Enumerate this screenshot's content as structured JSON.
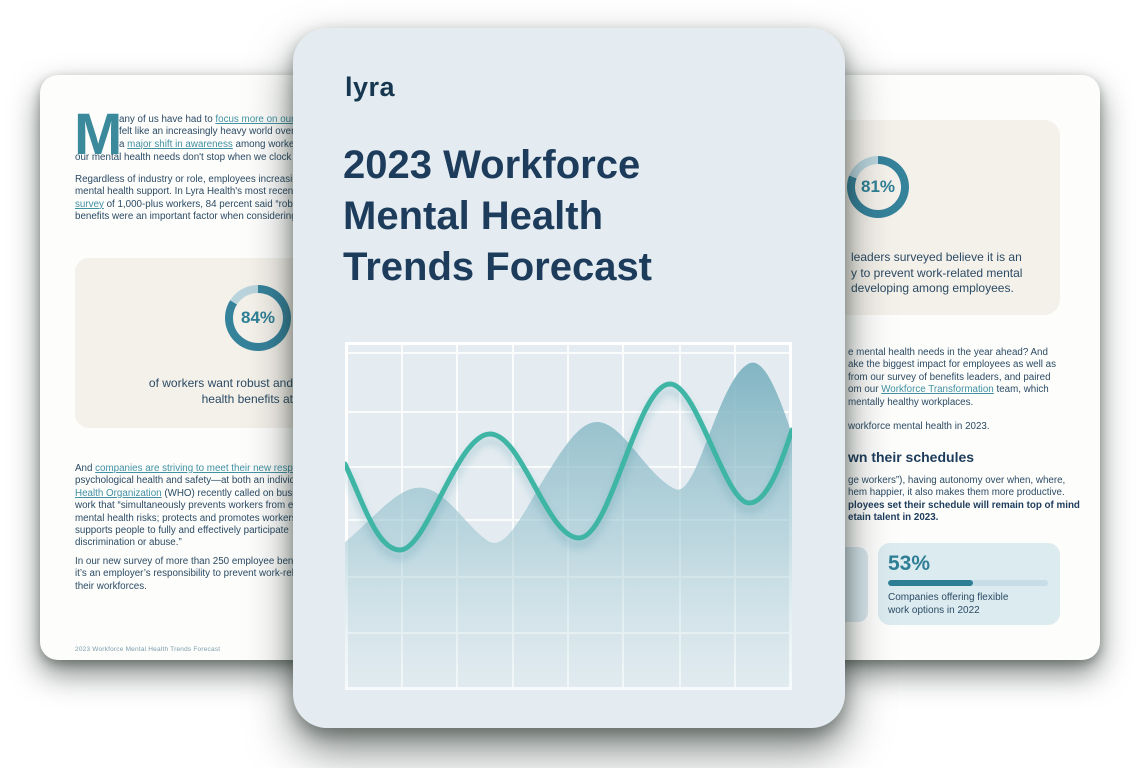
{
  "colors": {
    "teal": "#35829b",
    "donut_track": "#b9d4dd",
    "navy": "#1d3c5c",
    "link": "#4191a3",
    "wave": "#3fb5a6",
    "area_top": "#79b0bf",
    "cover_bg": "#e4ecf1",
    "beige_card": "#f4f0ea",
    "blue_card": "#dcebf0"
  },
  "center_card": {
    "logo": "lyra",
    "title": [
      "2023 Workforce",
      "Mental Health",
      "Trends Forecast"
    ]
  },
  "left_page": {
    "dropcap": "M",
    "p1": [
      [
        "any of us have had to ",
        {
          "t": "focus more on our",
          "link": true
        }
      ],
      [
        "felt like an increasingly heavy world over"
      ],
      [
        "a ",
        {
          "t": "major shift in awareness",
          "link": true
        },
        " among worker"
      ],
      [
        "our mental health needs don't stop when we clock i"
      ]
    ],
    "p2": [
      [
        "Regardless of industry or role, employees increasin"
      ],
      [
        "mental health support. In Lyra Health's most recent"
      ],
      [
        {
          "t": "survey",
          "link": true
        },
        " of 1,000-plus workers, 84 percent said “robu"
      ],
      [
        "benefits were an important factor when considering"
      ]
    ],
    "stat_card": {
      "value": "84%",
      "percent": 84,
      "caption": [
        "of workers want robust and",
        "health benefits at"
      ]
    },
    "p3": [
      [
        "And ",
        {
          "t": "companies are striving to meet their new respo",
          "link": true
        }
      ],
      [
        "psychological health and safety—at both an individ"
      ],
      [
        {
          "t": "Health Organization",
          "link": true
        },
        " (WHO) recently called on busin"
      ],
      [
        "work that “simultaneously prevents workers from e"
      ],
      [
        "mental health risks; protects and promotes workers"
      ],
      [
        "supports people to fully and effectively participate"
      ],
      [
        "discrimination or abuse.”"
      ]
    ],
    "p4": [
      [
        "In our new survey of more than 250 employee bene"
      ],
      [
        "it’s an employer’s responsibility to prevent work-rel"
      ],
      [
        "their workforces."
      ]
    ],
    "footer": "2023 Workforce Mental Health Trends Forecast"
  },
  "right_page": {
    "stat_card": {
      "value": "81%",
      "percent": 81,
      "caption": [
        "leaders surveyed believe it is an",
        "y to prevent work-related mental",
        "developing among employees."
      ]
    },
    "p1": [
      [
        "e mental health needs in the year ahead? And"
      ],
      [
        "ake the biggest impact for employees as well as"
      ],
      [
        "from our survey of benefits leaders, and paired"
      ],
      [
        "om our ",
        {
          "t": "Workforce Transformation",
          "link": true
        },
        " team, which"
      ],
      [
        "mentally healthy workplaces."
      ]
    ],
    "solo": [
      "workforce mental health in 2023."
    ],
    "heading": "wn their schedules",
    "p2": [
      [
        "ge workers”), having autonomy over when, where,"
      ],
      [
        "hem happier, it also makes them more productive."
      ],
      [
        {
          "t": "ployees set their schedule will remain top of mind",
          "b": true
        }
      ],
      [
        {
          "t": "etain talent in 2023.",
          "b": true
        }
      ]
    ],
    "bar_card": {
      "value": "53%",
      "percent": 53,
      "caption": [
        "Companies offering flexible",
        "work options in 2022"
      ]
    }
  }
}
